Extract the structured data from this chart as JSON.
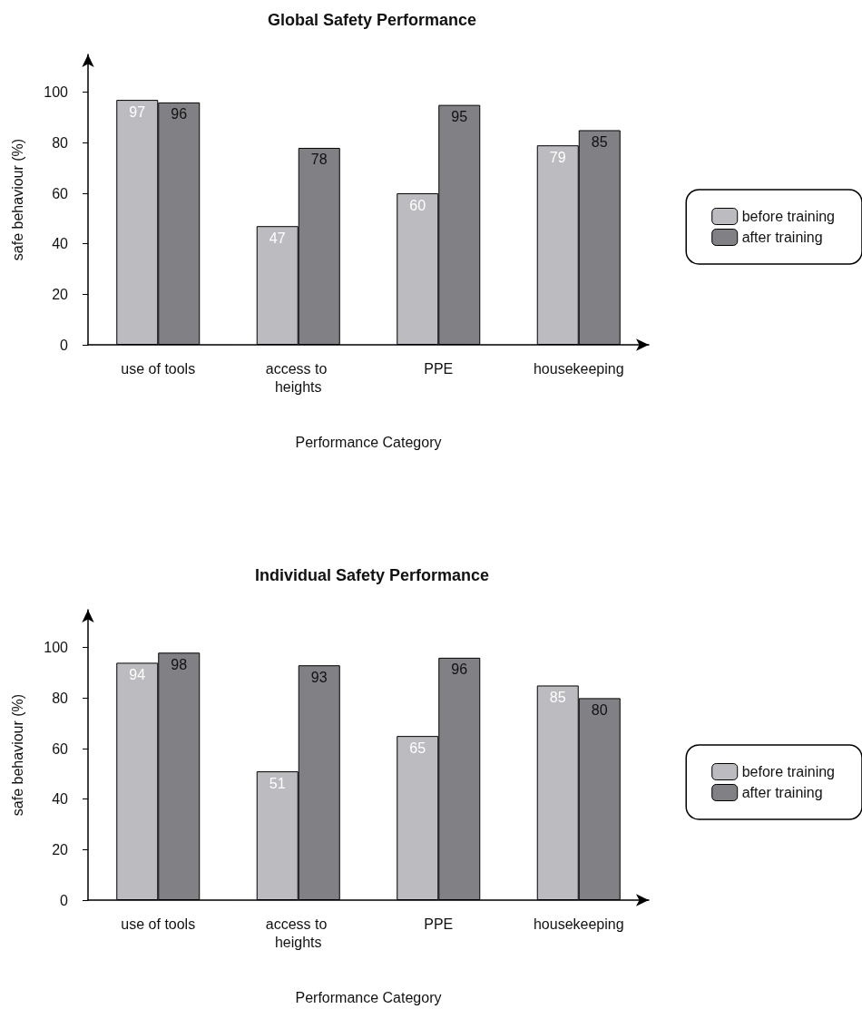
{
  "chart_data": [
    {
      "type": "bar",
      "title": "Global Safety Performance",
      "xlabel": "Performance Category",
      "ylabel": "safe behaviour (%)",
      "categories": [
        "use of tools",
        "access to heights",
        "PPE",
        "housekeeping"
      ],
      "series": [
        {
          "name": "before training",
          "color": "#bcbcc0",
          "values": [
            97,
            47,
            60,
            79
          ]
        },
        {
          "name": "after training",
          "color": "#808085",
          "values": [
            96,
            78,
            95,
            85
          ]
        }
      ],
      "ylim": [
        0,
        115
      ],
      "yticks": [
        0,
        20,
        40,
        60,
        80,
        100
      ],
      "grid": false,
      "legend": "right",
      "data_labels": true
    },
    {
      "type": "bar",
      "title": "Individual Safety Performance",
      "xlabel": "Performance Category",
      "ylabel": "safe behaviour (%)",
      "categories": [
        "use of tools",
        "access to heights",
        "PPE",
        "housekeeping"
      ],
      "series": [
        {
          "name": "before training",
          "color": "#bcbcc0",
          "values": [
            94,
            51,
            65,
            85
          ]
        },
        {
          "name": "after training",
          "color": "#808085",
          "values": [
            98,
            93,
            96,
            80
          ]
        }
      ],
      "ylim": [
        0,
        115
      ],
      "yticks": [
        0,
        20,
        40,
        60,
        80,
        100
      ],
      "grid": false,
      "legend": "right",
      "data_labels": true
    }
  ]
}
